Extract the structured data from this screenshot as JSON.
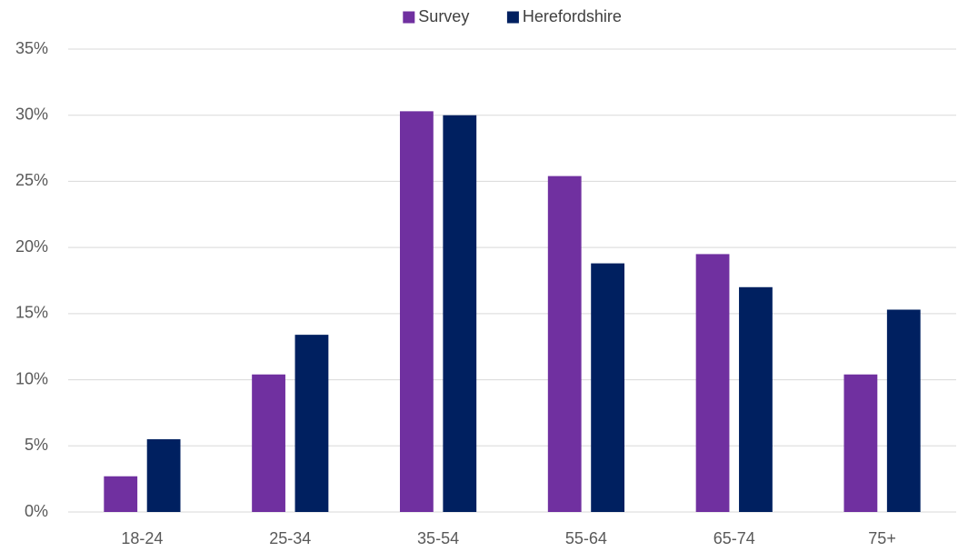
{
  "chart_data": {
    "type": "bar",
    "categories": [
      "18-24",
      "25-34",
      "35-54",
      "55-64",
      "65-74",
      "75+"
    ],
    "series": [
      {
        "name": "Survey",
        "color": "#7030a0",
        "values": [
          2.7,
          10.4,
          30.3,
          25.4,
          19.5,
          10.4
        ]
      },
      {
        "name": "Herefordshire",
        "color": "#002060",
        "values": [
          5.5,
          13.4,
          30.0,
          18.8,
          17.0,
          15.3
        ]
      }
    ],
    "ylim": [
      0,
      35
    ],
    "yticks": [
      {
        "value": 0,
        "label": "0%"
      },
      {
        "value": 5,
        "label": "5%"
      },
      {
        "value": 10,
        "label": "10%"
      },
      {
        "value": 15,
        "label": "15%"
      },
      {
        "value": 20,
        "label": "20%"
      },
      {
        "value": 25,
        "label": "25%"
      },
      {
        "value": 30,
        "label": "30%"
      },
      {
        "value": 35,
        "label": "35%"
      }
    ],
    "grid": true,
    "legend": "top"
  }
}
